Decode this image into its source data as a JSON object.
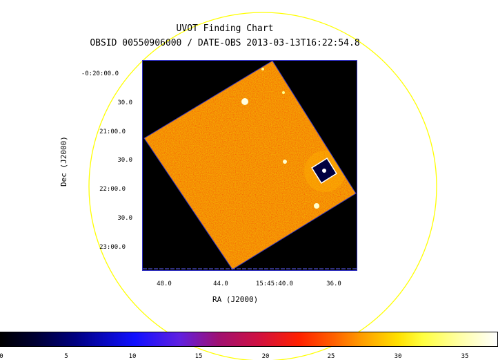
{
  "chart": {
    "title": "UVOT Finding Chart",
    "subtitle": "OBSID 00550906000 / DATE-OBS 2013-03-13T16:22:54.8",
    "ylabel": "Dec (J2000)",
    "xlabel": "RA (J2000)",
    "dec_ticks": [
      "-0:20:00.0",
      "30.0",
      "21:00.0",
      "30.0",
      "22:00.0",
      "30.0",
      "23:00.0"
    ],
    "ra_ticks": [
      "48.0",
      "44.0",
      "15:45:40.0",
      "36.0"
    ]
  },
  "colorbar": {
    "ticks": [
      "0",
      "5",
      "10",
      "15",
      "20",
      "25",
      "30",
      "35"
    ],
    "range": [
      0,
      37
    ]
  },
  "colors": {
    "circle": "#ffff00",
    "field_edge": "#3030c0",
    "target_box": "#ffffff"
  }
}
